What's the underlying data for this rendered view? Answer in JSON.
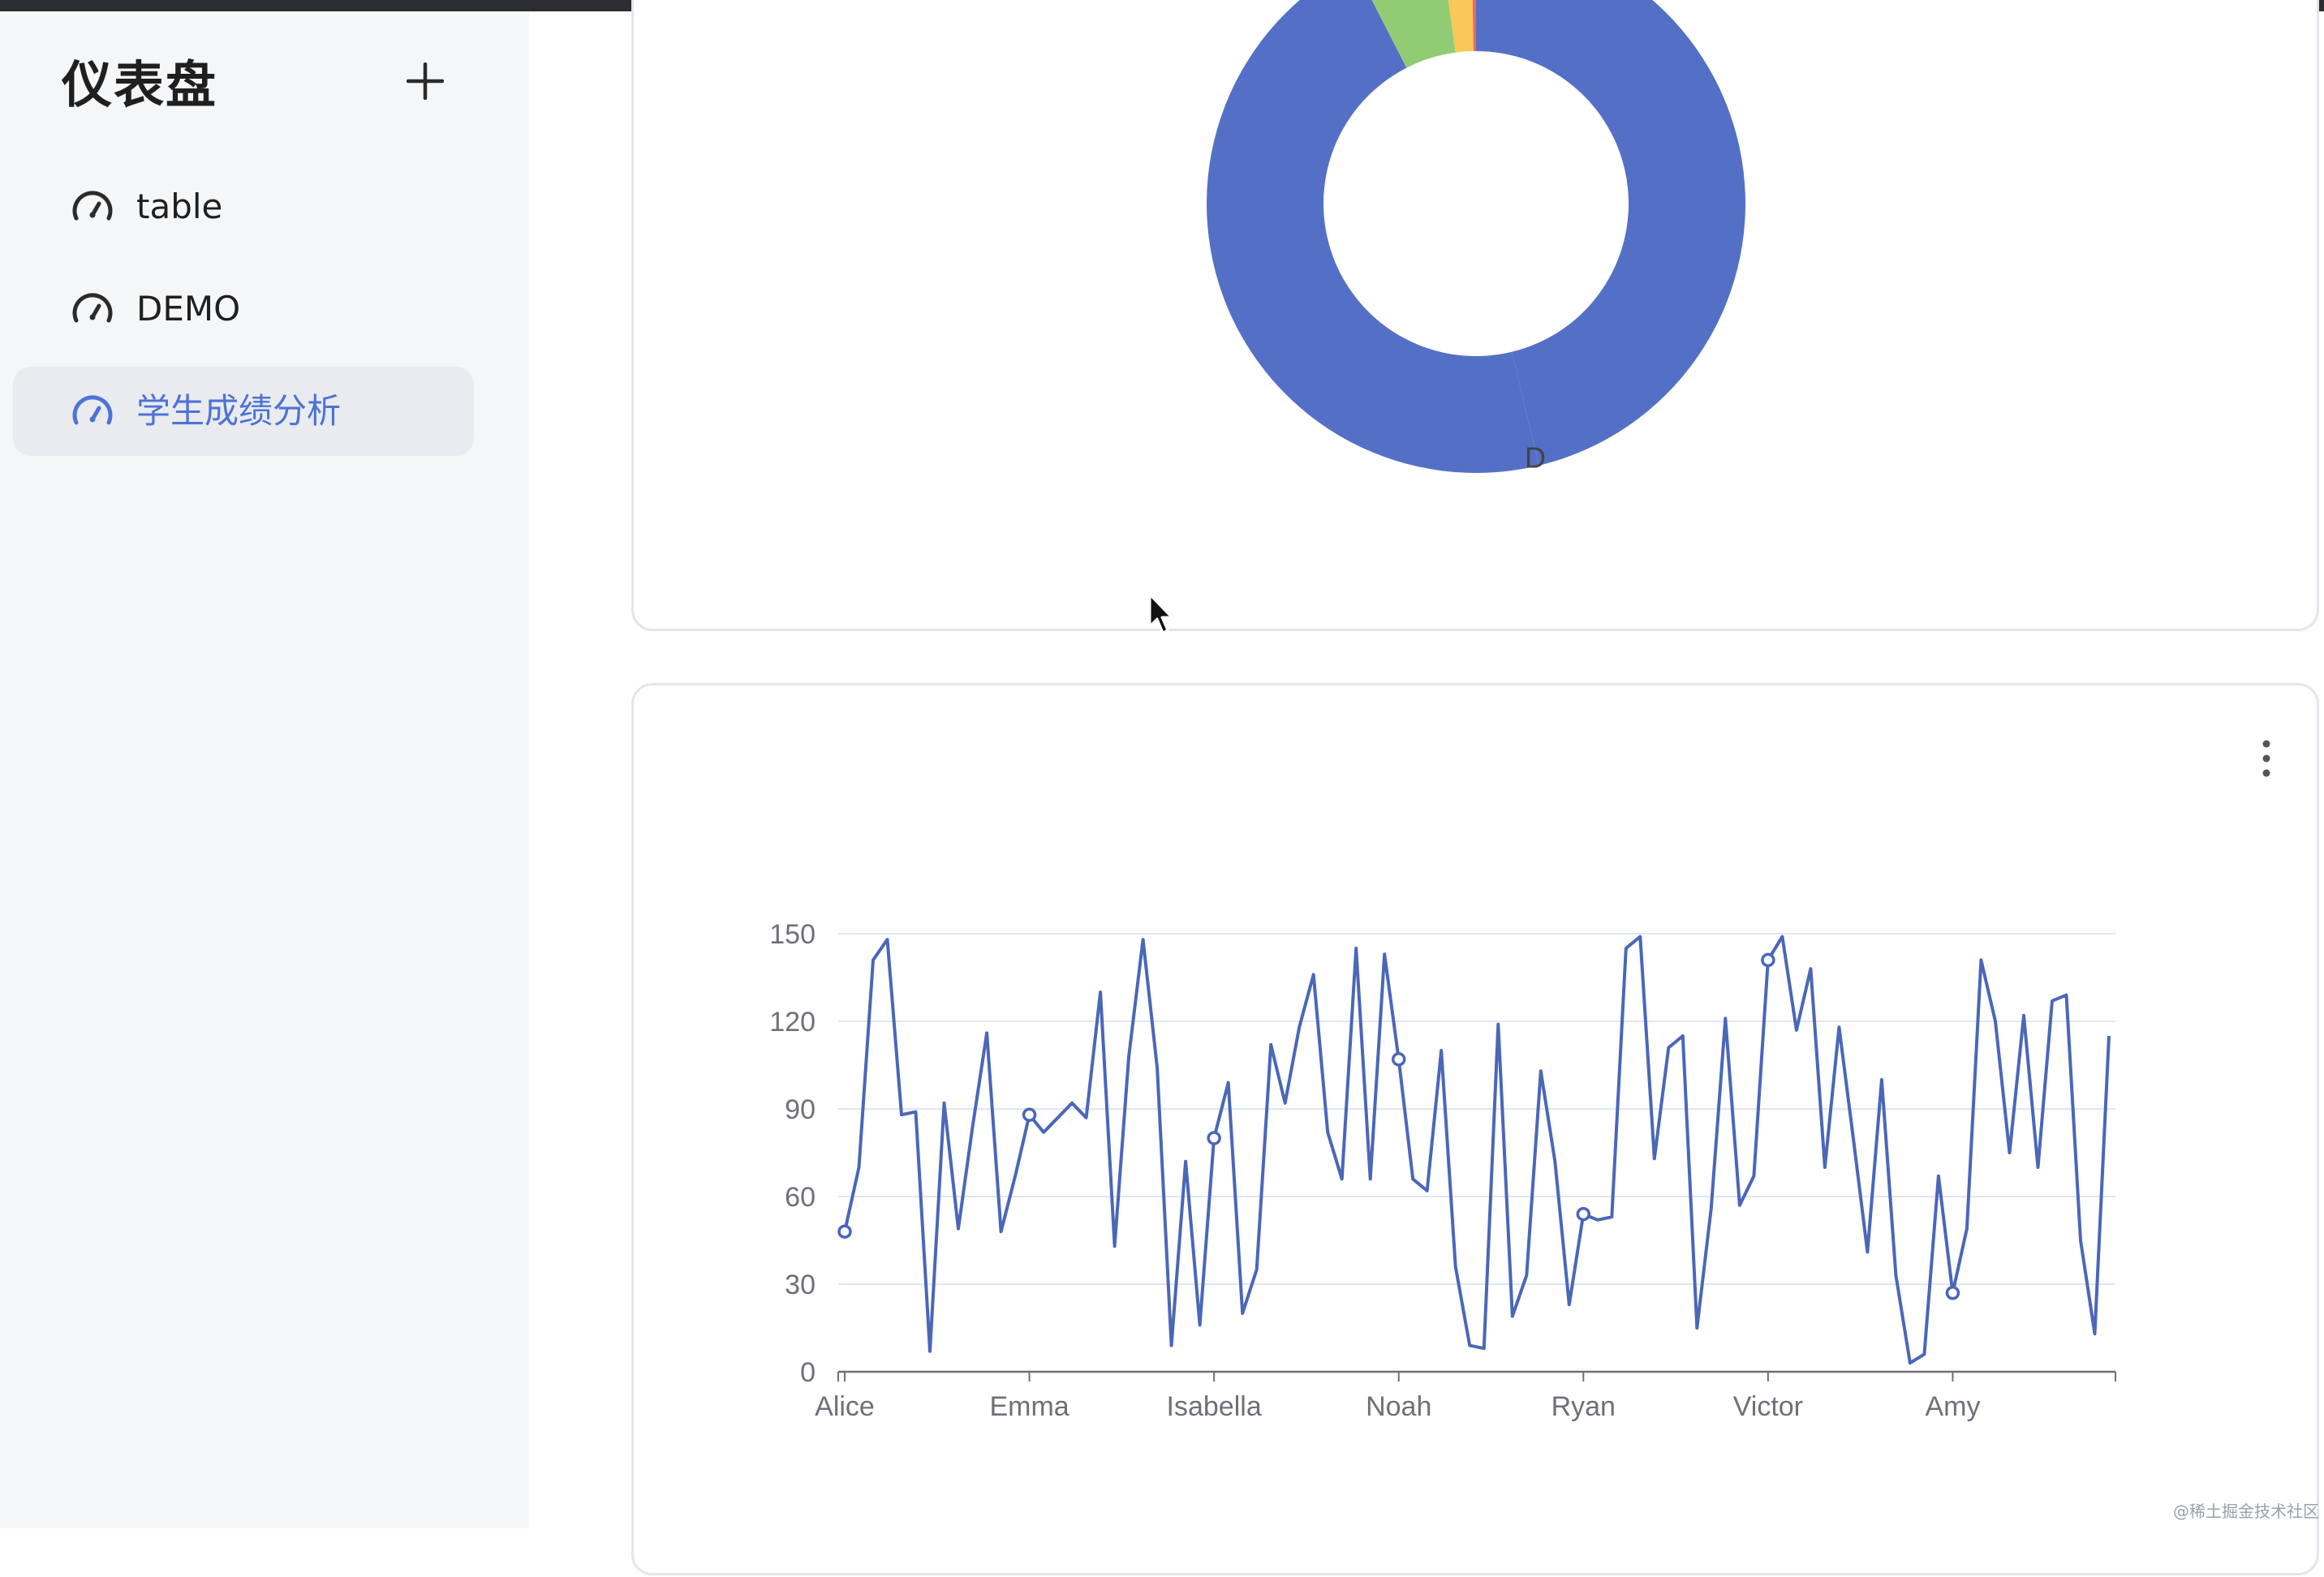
{
  "sidebar": {
    "title": "仪表盘",
    "add_icon": "plus-icon",
    "items": [
      {
        "label": "table",
        "icon": "dashboard-gauge-icon",
        "active": false
      },
      {
        "label": "DEMO",
        "icon": "dashboard-gauge-icon",
        "active": false
      },
      {
        "label": "学生成绩分析",
        "icon": "dashboard-gauge-icon",
        "active": true
      }
    ]
  },
  "colors": {
    "accent": "#4e73d6",
    "donut_blue": "#5470c6",
    "donut_green": "#91cc75",
    "donut_yellow": "#fac858",
    "donut_red": "#ee6666",
    "line": "#4a67b8",
    "sidebar_bg": "#f5f6f8"
  },
  "watermark": "@稀土掘金技术社区",
  "chart_data": [
    {
      "type": "pie",
      "variant": "donut",
      "visible_labels": [
        "D"
      ],
      "slices": [
        {
          "label": "",
          "value": 86,
          "color": "#5470c6"
        },
        {
          "label": "D",
          "value": 86,
          "color": "#5470c6"
        },
        {
          "label": "",
          "value": 10,
          "color": "#91cc75"
        },
        {
          "label": "",
          "value": 3.5,
          "color": "#fac858"
        },
        {
          "label": "",
          "value": 0.5,
          "color": "#ee6666"
        }
      ]
    },
    {
      "type": "line",
      "title": "",
      "xlabel": "",
      "ylabel": "",
      "ylim": [
        0,
        150
      ],
      "yticks": [
        0,
        30,
        60,
        90,
        120,
        150
      ],
      "x_tick_labels": [
        "Alice",
        "Emma",
        "Isabella",
        "Noah",
        "Ryan",
        "Victor",
        "Amy"
      ],
      "x_tick_indices": [
        0,
        13,
        26,
        39,
        52,
        65,
        78
      ],
      "grid": true,
      "series": [
        {
          "name": "",
          "values": [
            48,
            70,
            141,
            148,
            88,
            89,
            7,
            92,
            49,
            84,
            116,
            48,
            67,
            88,
            82,
            87,
            92,
            87,
            130,
            43,
            108,
            148,
            104,
            9,
            72,
            16,
            80,
            99,
            20,
            35,
            112,
            92,
            118,
            136,
            82,
            66,
            145,
            66,
            143,
            107,
            66,
            62,
            110,
            36,
            9,
            8,
            119,
            19,
            33,
            103,
            72,
            23,
            54,
            52,
            53,
            145,
            149,
            73,
            111,
            115,
            15,
            56,
            121,
            57,
            67,
            141,
            149,
            117,
            138,
            70,
            118,
            80,
            41,
            100,
            33,
            3,
            6,
            67,
            27,
            49,
            141,
            120,
            75,
            122,
            70,
            127,
            129,
            45,
            13,
            115
          ],
          "markers_at": [
            0,
            13,
            26,
            39,
            52,
            65,
            78
          ]
        }
      ]
    }
  ]
}
